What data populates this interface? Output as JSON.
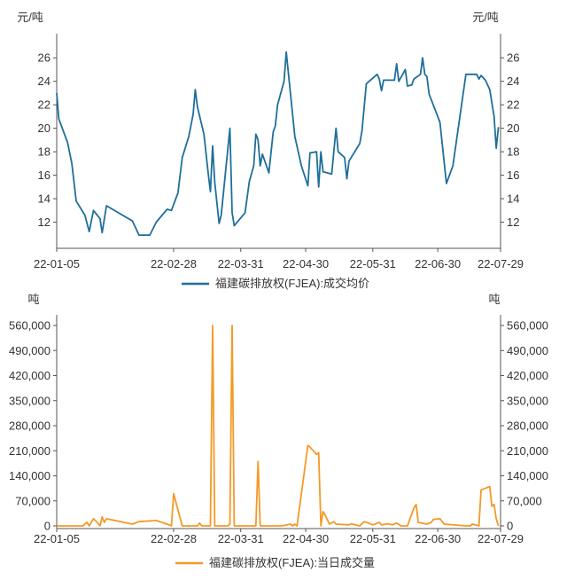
{
  "colors": {
    "price": "#1f6f9a",
    "volume": "#f39a26",
    "axis": "#555555"
  },
  "chart_data": [
    {
      "type": "line",
      "unit_left": "元/吨",
      "unit_right": "元/吨",
      "ylim": [
        10,
        27
      ],
      "yticks": [
        12,
        14,
        16,
        18,
        20,
        22,
        24,
        26
      ],
      "xticks": [
        "22-01-05",
        "22-02-28",
        "22-03-31",
        "22-04-30",
        "22-05-31",
        "22-06-30",
        "22-07-29"
      ],
      "grid": false,
      "legend_position": "bottom-center",
      "series": [
        {
          "name": "福建碳排放权(FJEA):成交均价",
          "points": [
            [
              "2022-01-05",
              23.0
            ],
            [
              "2022-01-06",
              20.8
            ],
            [
              "2022-01-10",
              18.8
            ],
            [
              "2022-01-12",
              17.0
            ],
            [
              "2022-01-14",
              13.8
            ],
            [
              "2022-01-18",
              12.6
            ],
            [
              "2022-01-20",
              11.2
            ],
            [
              "2022-01-22",
              13.0
            ],
            [
              "2022-01-25",
              12.3
            ],
            [
              "2022-01-26",
              11.1
            ],
            [
              "2022-01-28",
              13.4
            ],
            [
              "2022-02-09",
              12.1
            ],
            [
              "2022-02-12",
              10.9
            ],
            [
              "2022-02-17",
              10.9
            ],
            [
              "2022-02-20",
              12.0
            ],
            [
              "2022-02-25",
              13.1
            ],
            [
              "2022-02-27",
              13.0
            ],
            [
              "2022-03-02",
              14.5
            ],
            [
              "2022-03-04",
              17.5
            ],
            [
              "2022-03-07",
              19.3
            ],
            [
              "2022-03-09",
              21.2
            ],
            [
              "2022-03-10",
              23.3
            ],
            [
              "2022-03-11",
              21.8
            ],
            [
              "2022-03-14",
              19.5
            ],
            [
              "2022-03-16",
              16.1
            ],
            [
              "2022-03-17",
              14.6
            ],
            [
              "2022-03-18",
              18.5
            ],
            [
              "2022-03-19",
              15.4
            ],
            [
              "2022-03-21",
              11.9
            ],
            [
              "2022-03-22",
              12.6
            ],
            [
              "2022-03-26",
              20.0
            ],
            [
              "2022-03-27",
              12.8
            ],
            [
              "2022-03-28",
              11.7
            ],
            [
              "2022-04-02",
              12.8
            ],
            [
              "2022-04-04",
              15.5
            ],
            [
              "2022-04-06",
              16.8
            ],
            [
              "2022-04-07",
              19.5
            ],
            [
              "2022-04-08",
              19.0
            ],
            [
              "2022-04-09",
              16.8
            ],
            [
              "2022-04-10",
              17.8
            ],
            [
              "2022-04-13",
              16.2
            ],
            [
              "2022-04-15",
              19.7
            ],
            [
              "2022-04-16",
              20.2
            ],
            [
              "2022-04-17",
              22.0
            ],
            [
              "2022-04-20",
              24.0
            ],
            [
              "2022-04-21",
              26.5
            ],
            [
              "2022-04-25",
              19.3
            ],
            [
              "2022-04-28",
              16.8
            ],
            [
              "2022-05-01",
              15.1
            ],
            [
              "2022-05-02",
              17.9
            ],
            [
              "2022-05-05",
              18.0
            ],
            [
              "2022-05-06",
              15.0
            ],
            [
              "2022-05-07",
              18.0
            ],
            [
              "2022-05-08",
              16.3
            ],
            [
              "2022-05-12",
              16.1
            ],
            [
              "2022-05-14",
              20.0
            ],
            [
              "2022-05-15",
              18.0
            ],
            [
              "2022-05-18",
              17.5
            ],
            [
              "2022-05-19",
              15.7
            ],
            [
              "2022-05-20",
              17.2
            ],
            [
              "2022-05-25",
              18.7
            ],
            [
              "2022-05-26",
              19.8
            ],
            [
              "2022-05-28",
              23.8
            ],
            [
              "2022-06-02",
              24.6
            ],
            [
              "2022-06-03",
              24.2
            ],
            [
              "2022-06-04",
              23.2
            ],
            [
              "2022-06-05",
              24.1
            ],
            [
              "2022-06-10",
              24.1
            ],
            [
              "2022-06-11",
              25.5
            ],
            [
              "2022-06-12",
              24.0
            ],
            [
              "2022-06-15",
              25.0
            ],
            [
              "2022-06-16",
              23.6
            ],
            [
              "2022-06-18",
              23.7
            ],
            [
              "2022-06-19",
              24.2
            ],
            [
              "2022-06-22",
              24.6
            ],
            [
              "2022-06-23",
              26.0
            ],
            [
              "2022-06-24",
              24.6
            ],
            [
              "2022-06-25",
              24.4
            ],
            [
              "2022-06-26",
              22.9
            ],
            [
              "2022-06-30",
              21.0
            ],
            [
              "2022-07-01",
              20.5
            ],
            [
              "2022-07-04",
              15.3
            ],
            [
              "2022-07-07",
              16.8
            ],
            [
              "2022-07-13",
              24.6
            ],
            [
              "2022-07-18",
              24.6
            ],
            [
              "2022-07-19",
              24.2
            ],
            [
              "2022-07-20",
              24.5
            ],
            [
              "2022-07-22",
              24.1
            ],
            [
              "2022-07-24",
              23.3
            ],
            [
              "2022-07-26",
              21.0
            ],
            [
              "2022-07-27",
              18.3
            ],
            [
              "2022-07-28",
              20.1
            ]
          ]
        }
      ]
    },
    {
      "type": "line",
      "unit_left": "吨",
      "unit_right": "吨",
      "ylim": [
        0,
        560000
      ],
      "yticks": [
        0,
        70000,
        140000,
        210000,
        280000,
        350000,
        420000,
        490000,
        560000
      ],
      "ytick_labels": [
        "0",
        "70,000",
        "140,000",
        "210,000",
        "280,000",
        "350,000",
        "420,000",
        "490,000",
        "560,000"
      ],
      "xticks": [
        "22-01-05",
        "22-02-28",
        "22-03-31",
        "22-04-30",
        "22-05-31",
        "22-06-30",
        "22-07-29"
      ],
      "grid": false,
      "legend_position": "bottom-center",
      "series": [
        {
          "name": "福建碳排放权(FJEA):当日成交量",
          "points": [
            [
              "2022-01-05",
              0
            ],
            [
              "2022-01-17",
              0
            ],
            [
              "2022-01-19",
              10000
            ],
            [
              "2022-01-20",
              0
            ],
            [
              "2022-01-22",
              20000
            ],
            [
              "2022-01-24",
              8000
            ],
            [
              "2022-01-25",
              0
            ],
            [
              "2022-01-26",
              25000
            ],
            [
              "2022-01-27",
              10000
            ],
            [
              "2022-01-28",
              20000
            ],
            [
              "2022-02-09",
              5000
            ],
            [
              "2022-02-12",
              12000
            ],
            [
              "2022-02-20",
              15000
            ],
            [
              "2022-02-25",
              5000
            ],
            [
              "2022-02-27",
              0
            ],
            [
              "2022-02-28",
              90000
            ],
            [
              "2022-03-04",
              0
            ],
            [
              "2022-03-11",
              0
            ],
            [
              "2022-03-12",
              8000
            ],
            [
              "2022-03-13",
              0
            ],
            [
              "2022-03-17",
              0
            ],
            [
              "2022-03-18",
              560000
            ],
            [
              "2022-03-19",
              0
            ],
            [
              "2022-03-25",
              0
            ],
            [
              "2022-03-26",
              5000
            ],
            [
              "2022-03-27",
              560000
            ],
            [
              "2022-03-28",
              0
            ],
            [
              "2022-04-07",
              0
            ],
            [
              "2022-04-08",
              180000
            ],
            [
              "2022-04-09",
              0
            ],
            [
              "2022-04-19",
              0
            ],
            [
              "2022-04-23",
              5000
            ],
            [
              "2022-04-24",
              0
            ],
            [
              "2022-04-25",
              5000
            ],
            [
              "2022-04-26",
              0
            ],
            [
              "2022-05-01",
              225000
            ],
            [
              "2022-05-02",
              220000
            ],
            [
              "2022-05-05",
              200000
            ],
            [
              "2022-05-06",
              205000
            ],
            [
              "2022-05-07",
              0
            ],
            [
              "2022-05-08",
              40000
            ],
            [
              "2022-05-09",
              30000
            ],
            [
              "2022-05-11",
              5000
            ],
            [
              "2022-05-13",
              12000
            ],
            [
              "2022-05-14",
              5000
            ],
            [
              "2022-05-20",
              3000
            ],
            [
              "2022-05-21",
              6000
            ],
            [
              "2022-05-25",
              0
            ],
            [
              "2022-05-27",
              12000
            ],
            [
              "2022-05-29",
              8000
            ],
            [
              "2022-05-31",
              3000
            ],
            [
              "2022-06-03",
              10000
            ],
            [
              "2022-06-04",
              3000
            ],
            [
              "2022-06-07",
              6000
            ],
            [
              "2022-06-09",
              3000
            ],
            [
              "2022-06-11",
              8000
            ],
            [
              "2022-06-13",
              0
            ],
            [
              "2022-06-16",
              0
            ],
            [
              "2022-06-19",
              50000
            ],
            [
              "2022-06-20",
              60000
            ],
            [
              "2022-06-21",
              10000
            ],
            [
              "2022-06-25",
              5000
            ],
            [
              "2022-06-27",
              10000
            ],
            [
              "2022-06-28",
              18000
            ],
            [
              "2022-07-01",
              20000
            ],
            [
              "2022-07-03",
              5000
            ],
            [
              "2022-07-13",
              0
            ],
            [
              "2022-07-15",
              0
            ],
            [
              "2022-07-16",
              5000
            ],
            [
              "2022-07-19",
              0
            ],
            [
              "2022-07-20",
              100000
            ],
            [
              "2022-07-22",
              105000
            ],
            [
              "2022-07-24",
              110000
            ],
            [
              "2022-07-25",
              55000
            ],
            [
              "2022-07-26",
              60000
            ],
            [
              "2022-07-27",
              20000
            ],
            [
              "2022-07-28",
              0
            ]
          ]
        }
      ]
    }
  ]
}
